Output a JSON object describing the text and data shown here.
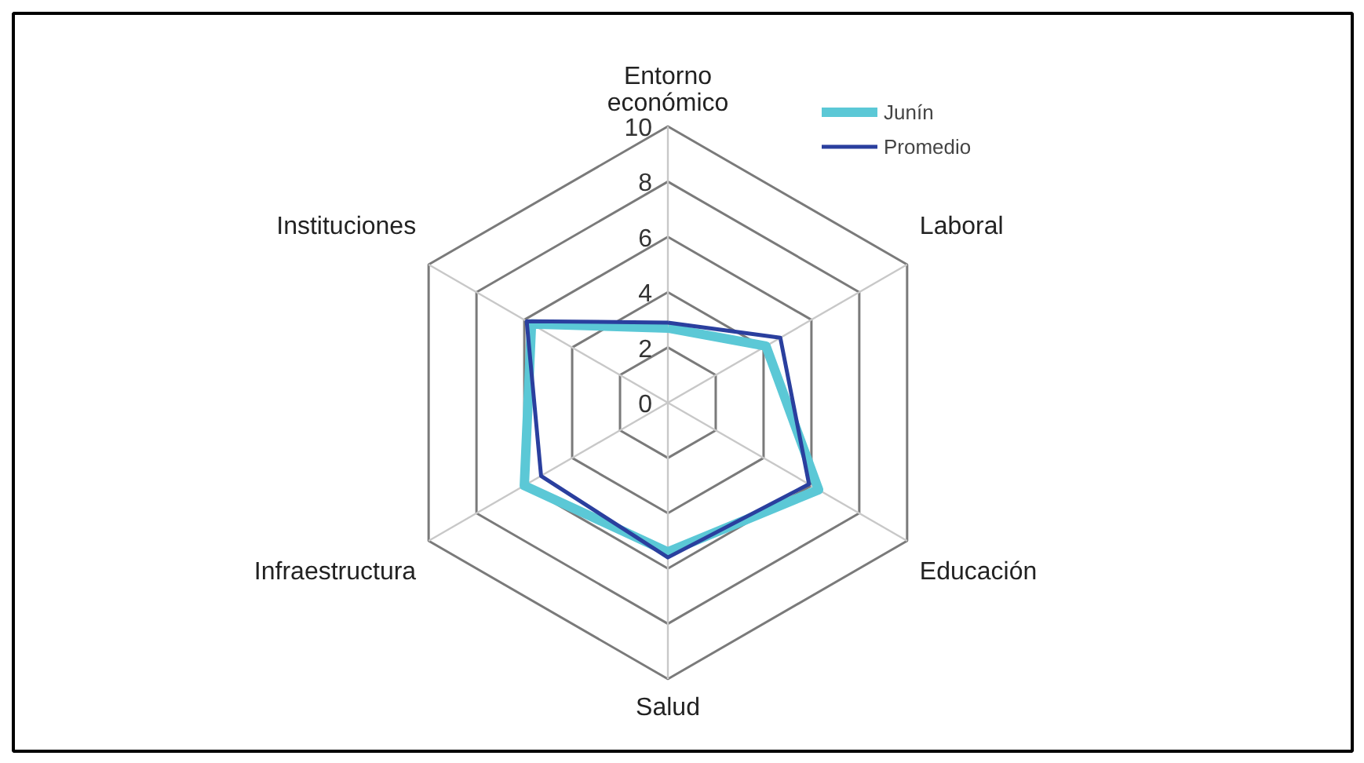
{
  "chart_data": {
    "type": "radar",
    "categories": [
      "Entorno económico",
      "Laboral",
      "Educación",
      "Salud",
      "Infraestructura",
      "Instituciones"
    ],
    "series": [
      {
        "name": "Junín",
        "color": "#5bc8d6",
        "values": [
          2.7,
          4.1,
          6.3,
          5.4,
          6.0,
          5.7
        ]
      },
      {
        "name": "Promedio",
        "color": "#2a3f9e",
        "values": [
          2.9,
          4.7,
          5.9,
          5.6,
          5.3,
          5.9
        ]
      }
    ],
    "ylim": [
      0,
      10
    ],
    "yticks": [
      0,
      2,
      4,
      6,
      8,
      10
    ],
    "legend": "top right",
    "grid": true
  }
}
